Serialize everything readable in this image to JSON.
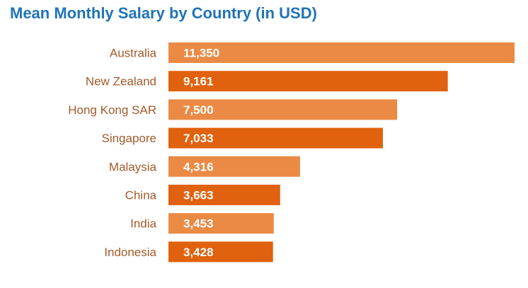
{
  "chart_data": {
    "type": "bar",
    "orientation": "horizontal",
    "title": "Mean Monthly Salary by Country (in USD)",
    "categories": [
      "Australia",
      "New Zealand",
      "Hong Kong SAR",
      "Singapore",
      "Malaysia",
      "China",
      "India",
      "Indonesia"
    ],
    "values": [
      11350,
      9161,
      7500,
      7033,
      4316,
      3663,
      3453,
      3428
    ],
    "value_labels": [
      "11,350",
      "9,161",
      "7,500",
      "7,033",
      "4,316",
      "3,663",
      "3,453",
      "3,428"
    ],
    "xlim": [
      0,
      11350
    ],
    "grid": false,
    "legend": "none",
    "colors": {
      "title": "#1f73b8",
      "bar_light": "#ea8a45",
      "bar_dark": "#e0620e",
      "category_text": "#a35a2a",
      "value_text": "#ffffff"
    }
  }
}
